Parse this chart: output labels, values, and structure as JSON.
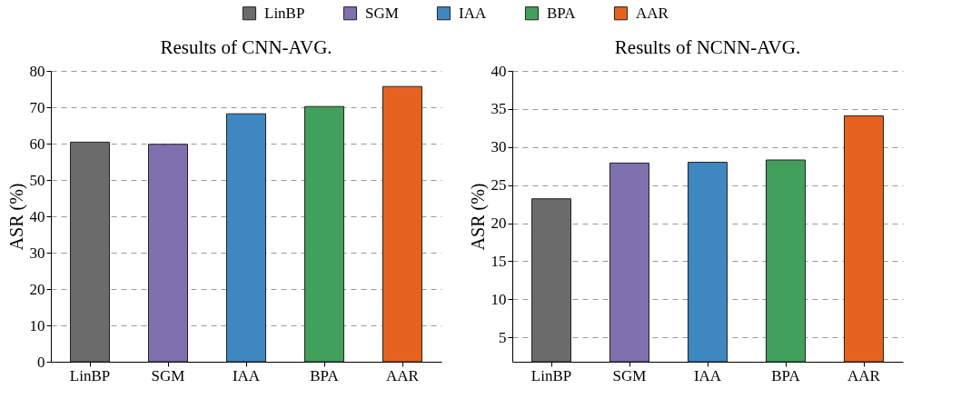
{
  "chart_data": [
    {
      "type": "bar",
      "title": "Results of CNN-AVG.",
      "ylabel": "ASR (%)",
      "categories": [
        "LinBP",
        "SGM",
        "IAA",
        "BPA",
        "AAR"
      ],
      "series": [
        {
          "name": "LinBP",
          "color": "#6b6b6b",
          "values": [
            60.4,
            null,
            null,
            null,
            null
          ]
        },
        {
          "name": "SGM",
          "color": "#7f70b0",
          "values": [
            null,
            59.8,
            null,
            null,
            null
          ]
        },
        {
          "name": "IAA",
          "color": "#3f87c0",
          "values": [
            null,
            null,
            68.2,
            null,
            null
          ]
        },
        {
          "name": "BPA",
          "color": "#41a05b",
          "values": [
            null,
            null,
            null,
            70.2,
            null
          ]
        },
        {
          "name": "AAR",
          "color": "#e5621f",
          "values": [
            null,
            null,
            null,
            null,
            75.7
          ]
        }
      ],
      "ylim": [
        0,
        80
      ],
      "yticks": [
        0,
        10,
        20,
        30,
        40,
        50,
        60,
        70,
        80
      ],
      "grid": "y",
      "legend": "top"
    },
    {
      "type": "bar",
      "title": "Results of NCNN-AVG.",
      "ylabel": "ASR (%)",
      "categories": [
        "LinBP",
        "SGM",
        "IAA",
        "BPA",
        "AAR"
      ],
      "series": [
        {
          "name": "LinBP",
          "color": "#6b6b6b",
          "values": [
            23.2,
            null,
            null,
            null,
            null
          ]
        },
        {
          "name": "SGM",
          "color": "#7f70b0",
          "values": [
            null,
            27.9,
            null,
            null,
            null
          ]
        },
        {
          "name": "IAA",
          "color": "#3f87c0",
          "values": [
            null,
            null,
            28.0,
            null,
            null
          ]
        },
        {
          "name": "BPA",
          "color": "#41a05b",
          "values": [
            null,
            null,
            null,
            28.3,
            null
          ]
        },
        {
          "name": "AAR",
          "color": "#e5621f",
          "values": [
            null,
            null,
            null,
            null,
            34.1
          ]
        }
      ],
      "ylim": [
        1.8,
        40
      ],
      "yticks": [
        5,
        10,
        15,
        20,
        25,
        30,
        35,
        40
      ],
      "grid": "y",
      "legend": "top"
    }
  ]
}
